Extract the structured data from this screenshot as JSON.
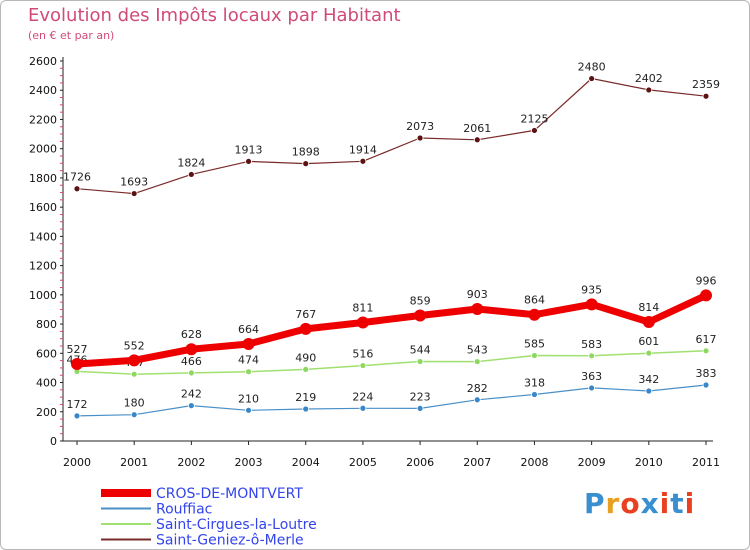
{
  "header": {
    "title": "Evolution des Impôts locaux par Habitant",
    "subtitle": "(en € et par an)"
  },
  "logo": {
    "text": "Proxiti",
    "colors": [
      "#3a8fd0",
      "#e8a020",
      "#e84020",
      "#3a8fd0",
      "#e84020",
      "#3a8fd0",
      "#e84020"
    ]
  },
  "chart_data": {
    "type": "line",
    "title": "Evolution des Impôts locaux par Habitant",
    "subtitle": "(en € et par an)",
    "xlabel": "",
    "ylabel": "",
    "categories": [
      "2000",
      "2001",
      "2002",
      "2003",
      "2004",
      "2005",
      "2006",
      "2007",
      "2008",
      "2009",
      "2010",
      "2011"
    ],
    "ylim": [
      0,
      2600
    ],
    "yticks": [
      0,
      200,
      400,
      600,
      800,
      1000,
      1200,
      1400,
      1600,
      1800,
      2000,
      2200,
      2400,
      2600
    ],
    "grid": false,
    "legend_position": "bottom-left",
    "series": [
      {
        "name": "Saint-Geniez-ô-Merle",
        "color": "#7a2a2a",
        "marker": "#5a1212",
        "width": 1.2,
        "radius": 3,
        "values": [
          1726,
          1693,
          1824,
          1913,
          1898,
          1914,
          2073,
          2061,
          2125,
          2480,
          2402,
          2359
        ]
      },
      {
        "name": "Rouffiac",
        "color": "#4a90c8",
        "marker": "#3a86c8",
        "width": 1.2,
        "radius": 3,
        "values": [
          172,
          180,
          242,
          210,
          219,
          224,
          223,
          282,
          318,
          363,
          342,
          383
        ]
      },
      {
        "name": "Saint-Cirgues-la-Loutre",
        "color": "#9fe070",
        "marker": "#8ed860",
        "width": 1.5,
        "radius": 3,
        "values": [
          476,
          457,
          466,
          474,
          490,
          516,
          544,
          543,
          585,
          583,
          601,
          617
        ]
      },
      {
        "name": "CROS-DE-MONTVERT",
        "color": "#ee0000",
        "marker": "#ee0000",
        "width": 7,
        "radius": 6,
        "values": [
          527,
          552,
          628,
          664,
          767,
          811,
          859,
          903,
          864,
          935,
          814,
          996
        ]
      }
    ],
    "legend_order": [
      "CROS-DE-MONTVERT",
      "Rouffiac",
      "Saint-Cirgues-la-Loutre",
      "Saint-Geniez-ô-Merle"
    ]
  }
}
